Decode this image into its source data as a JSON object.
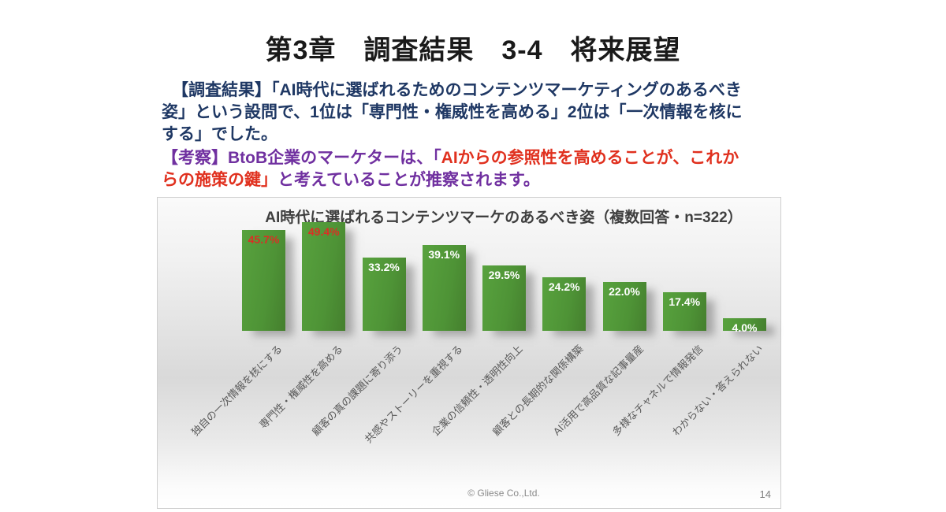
{
  "slide": {
    "title": "第3章　調査結果　3-4　将来展望",
    "footer": "© Gliese Co.,Ltd.",
    "page_number": "14"
  },
  "survey": {
    "lines": [
      "【調査結果】「AI時代に選ばれるためのコンテンツマーケティングのあるべき",
      "姿」という設問で、1位は「専門性・権威性を高める」2位は「一次情報を核に",
      "する」でした。"
    ]
  },
  "consideration": {
    "line1": {
      "seg1": "【考察】BtoB企業のマーケターは、「",
      "seg2": "AIからの参照性を高めることが、これか"
    },
    "line2": {
      "seg1": "らの施策の鍵」",
      "seg2": "と考えていることが推察されます。"
    }
  },
  "colors": {
    "survey_text": "#1f3864",
    "consideration_text": "#7030a0",
    "highlight_red": "#e0301e",
    "bar_green": "#4e9336",
    "bar_label_white": "#ffffff",
    "bar_label_red": "#d93025",
    "chart_title": "#3f3f3f",
    "category_label": "#595959"
  },
  "chart_data": {
    "type": "bar",
    "title": "AI時代に選ばれるコンテンツマーケのあるべき姿（複数回答・n=322）",
    "n": 322,
    "unit": "%",
    "categories": [
      "独自の一次情報を核にする",
      "専門性・権威性を高める",
      "顧客の真の課題に寄り添う",
      "共感やストーリーを重視する",
      "企業の信頼性・透明性向上",
      "顧客との長期的な関係構築",
      "AI活用で高品質な記事量産",
      "多様なチャネルで情報発信",
      "わからない・答えられない"
    ],
    "values": [
      45.7,
      49.4,
      33.2,
      39.1,
      29.5,
      24.2,
      22.0,
      17.4,
      4.0
    ],
    "data_labels": [
      "45.7%",
      "49.4%",
      "33.2%",
      "39.1%",
      "29.5%",
      "24.2%",
      "22.0%",
      "17.4%",
      "4.0%"
    ],
    "highlighted_label_indices": [
      0,
      1
    ],
    "xlabel": "",
    "ylabel": "",
    "ylim": [
      0,
      55
    ],
    "grid": false,
    "legend": false,
    "category_label_rotation_deg": 45
  }
}
